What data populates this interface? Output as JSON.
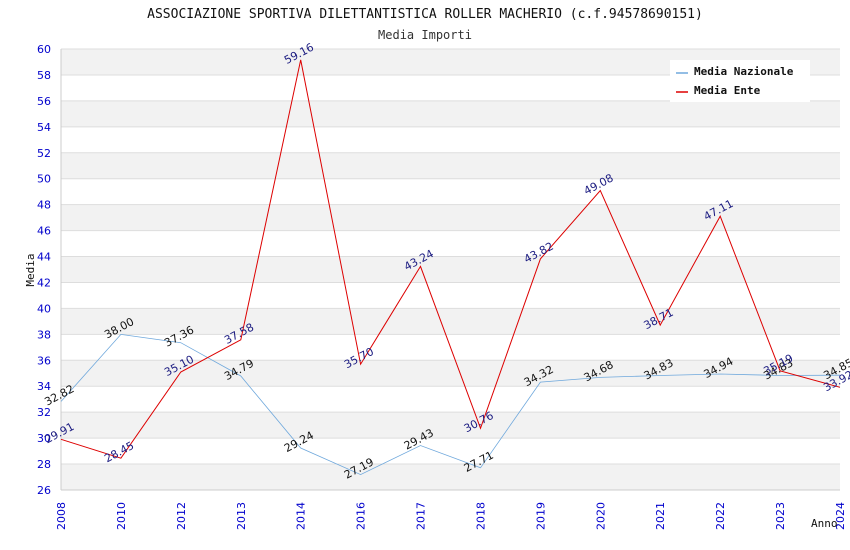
{
  "chart_data": {
    "type": "line",
    "title": "ASSOCIAZIONE SPORTIVA DILETTANTISTICA ROLLER MACHERIO (c.f.94578690151)",
    "subtitle": "Media Importi",
    "xlabel": "Anno",
    "ylabel": "Media",
    "ylim": [
      26,
      60
    ],
    "yticks": [
      "26",
      "28",
      "30",
      "32",
      "34",
      "36",
      "38",
      "40",
      "42",
      "44",
      "46",
      "48",
      "50",
      "52",
      "54",
      "56",
      "58",
      "60"
    ],
    "grid": "horizontal alternating bands",
    "legend_position": "top-right",
    "categories": [
      "2008",
      "2010",
      "2012",
      "2013",
      "2014",
      "2016",
      "2017",
      "2018",
      "2019",
      "2020",
      "2021",
      "2022",
      "2023",
      "2024"
    ],
    "series": [
      {
        "name": "Media Nazionale",
        "color": "#6fa8dc",
        "values": [
          32.82,
          38.0,
          37.36,
          34.79,
          29.24,
          27.19,
          29.43,
          27.71,
          34.32,
          34.68,
          34.83,
          34.94,
          34.83,
          34.85
        ],
        "labels": [
          "32.82",
          "38.00",
          "37.36",
          "34.79",
          "29.24",
          "27.19",
          "29.43",
          "27.71",
          "34.32",
          "34.68",
          "34.83",
          "34.94",
          "34.83",
          "34.85"
        ]
      },
      {
        "name": "Media Ente",
        "color": "#dd0000",
        "values": [
          29.91,
          28.45,
          35.1,
          37.58,
          59.16,
          35.7,
          43.24,
          30.76,
          43.82,
          49.08,
          38.71,
          47.11,
          35.19,
          33.92
        ],
        "labels": [
          "29.91",
          "28.45",
          "35.10",
          "37.58",
          "59.16",
          "35.70",
          "43.24",
          "30.76",
          "43.82",
          "49.08",
          "38.71",
          "47.11",
          "35.19",
          "33.92"
        ]
      }
    ]
  }
}
